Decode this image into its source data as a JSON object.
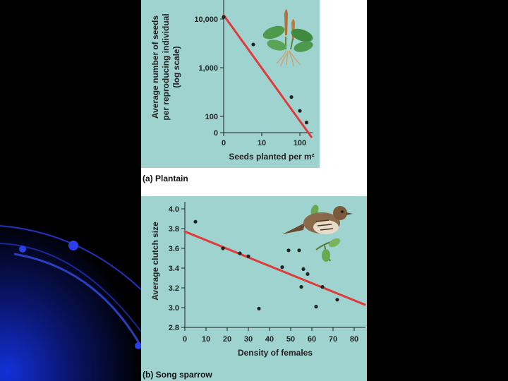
{
  "colors": {
    "plot_background": "#9fd3d0",
    "panel_background": "#ffffff",
    "fit_line": "#e03a3a",
    "points": "#222222",
    "slide_background": "#000000",
    "decor_blue": "#1a2fd0"
  },
  "icons": {
    "plantain": "plantain-plant-illustration",
    "sparrow": "song-sparrow-illustration"
  },
  "chart_data": [
    {
      "type": "scatter",
      "caption": "(a) Plantain",
      "xlabel": "Seeds planted per m²",
      "ylabel": "Average number of seeds per reproducing individual (log scale)",
      "x_ticks": [
        "0",
        "10",
        "100"
      ],
      "y_ticks": [
        "10,000",
        "1,000",
        "100",
        "0"
      ],
      "x_scale": "log",
      "y_scale": "log",
      "grid": false,
      "points": [
        {
          "x": 1,
          "y": 11000
        },
        {
          "x": 6,
          "y": 3000
        },
        {
          "x": 60,
          "y": 250
        },
        {
          "x": 100,
          "y": 130
        },
        {
          "x": 150,
          "y": 75
        }
      ],
      "fit_line": [
        {
          "x": 1,
          "y": 12000
        },
        {
          "x": 200,
          "y": 38
        }
      ]
    },
    {
      "type": "scatter",
      "caption": "(b) Song sparrow",
      "xlabel": "Density of females",
      "ylabel": "Average clutch size",
      "x_ticks": [
        "0",
        "10",
        "20",
        "30",
        "40",
        "50",
        "60",
        "70",
        "80"
      ],
      "y_ticks": [
        "2.8",
        "3.0",
        "3.2",
        "3.4",
        "3.6",
        "3.8",
        "4.0"
      ],
      "xlim": [
        0,
        85
      ],
      "ylim": [
        2.8,
        4.05
      ],
      "grid": false,
      "points": [
        {
          "x": 5,
          "y": 3.87
        },
        {
          "x": 18,
          "y": 3.6
        },
        {
          "x": 26,
          "y": 3.55
        },
        {
          "x": 30,
          "y": 3.52
        },
        {
          "x": 35,
          "y": 2.99
        },
        {
          "x": 46,
          "y": 3.41
        },
        {
          "x": 49,
          "y": 3.58
        },
        {
          "x": 54,
          "y": 3.58
        },
        {
          "x": 55,
          "y": 3.21
        },
        {
          "x": 56,
          "y": 3.39
        },
        {
          "x": 58,
          "y": 3.34
        },
        {
          "x": 62,
          "y": 3.01
        },
        {
          "x": 65,
          "y": 3.21
        },
        {
          "x": 72,
          "y": 3.08
        }
      ],
      "fit_line": [
        {
          "x": 0,
          "y": 3.77
        },
        {
          "x": 85,
          "y": 3.03
        }
      ]
    }
  ]
}
